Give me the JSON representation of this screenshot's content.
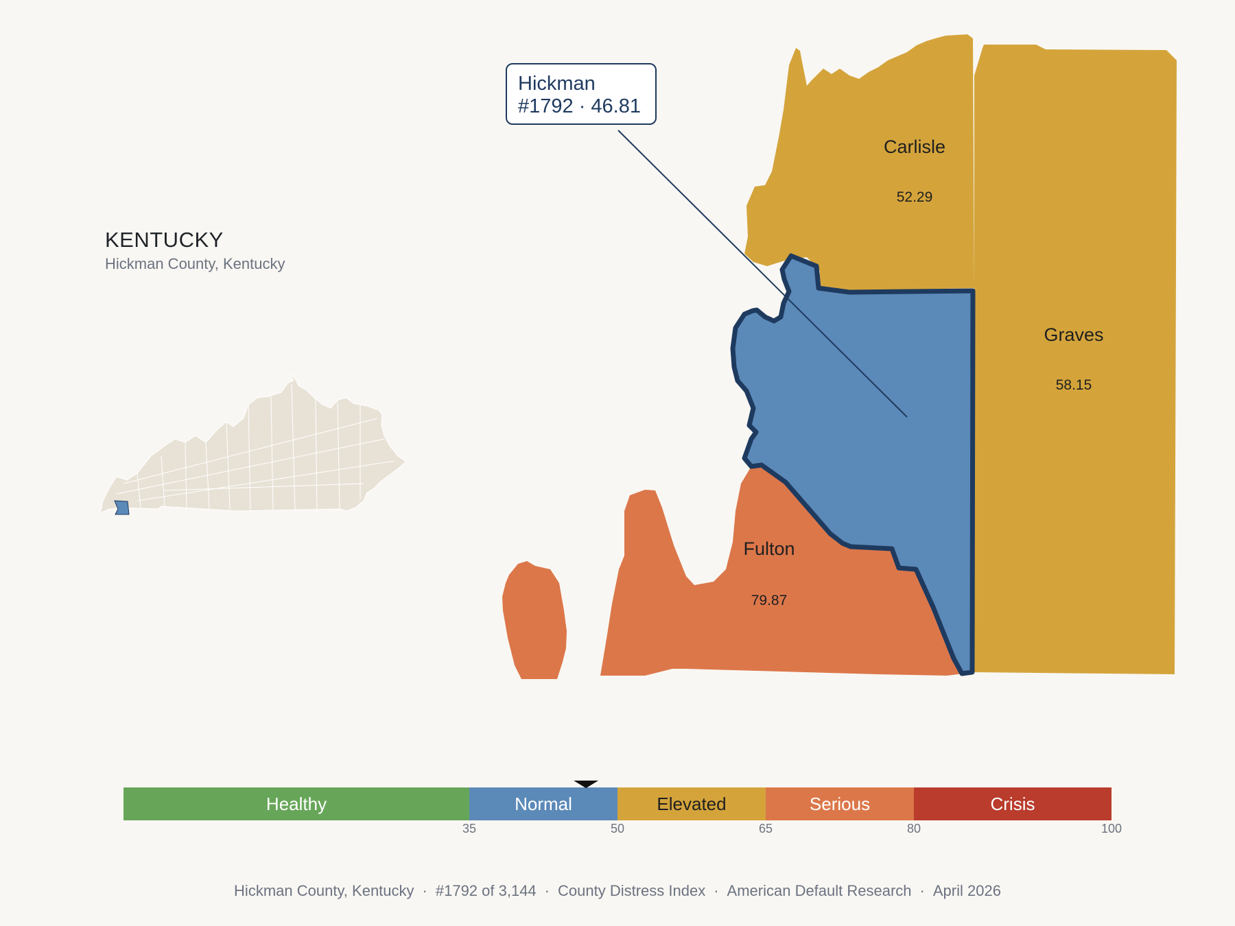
{
  "state": {
    "title": "KENTUCKY",
    "subtitle": "Hickman County, Kentucky"
  },
  "callout": {
    "name": "Hickman",
    "detail": "#1792 · 46.81"
  },
  "counties": [
    {
      "id": "hickman",
      "name": "Hickman",
      "value": 46.81,
      "value_label": "46.81",
      "color": "#5b89b8",
      "selected": true
    },
    {
      "id": "carlisle",
      "name": "Carlisle",
      "value": 52.29,
      "value_label": "52.29",
      "color": "#d4a43b"
    },
    {
      "id": "graves",
      "name": "Graves",
      "value": 58.15,
      "value_label": "58.15",
      "color": "#d4a43b"
    },
    {
      "id": "fulton",
      "name": "Fulton",
      "value": 79.87,
      "value_label": "79.87",
      "color": "#dc774a"
    }
  ],
  "colors": {
    "selected_outline": "#1e3a5f",
    "locator_fill": "#e8e2d6",
    "background": "#f9f7f3"
  },
  "legend": {
    "min": 0,
    "max": 100,
    "marker_value": 46.81,
    "bands": [
      {
        "label": "Healthy",
        "from": 0,
        "to": 35,
        "color": "#67a659",
        "text_color": "#ffffff"
      },
      {
        "label": "Normal",
        "from": 35,
        "to": 50,
        "color": "#5b89b8",
        "text_color": "#ffffff"
      },
      {
        "label": "Elevated",
        "from": 50,
        "to": 65,
        "color": "#d4a43b",
        "text_color": "#1f1f1f"
      },
      {
        "label": "Serious",
        "from": 65,
        "to": 80,
        "color": "#dc774a",
        "text_color": "#ffffff"
      },
      {
        "label": "Crisis",
        "from": 80,
        "to": 100,
        "color": "#b93c2c",
        "text_color": "#ffffff"
      }
    ],
    "ticks": [
      "35",
      "50",
      "65",
      "80",
      "100"
    ]
  },
  "footer": {
    "items": [
      "Hickman County, Kentucky",
      "#1792 of 3,144",
      "County Distress Index",
      "American Default Research",
      "April 2026"
    ],
    "separator": "·"
  }
}
